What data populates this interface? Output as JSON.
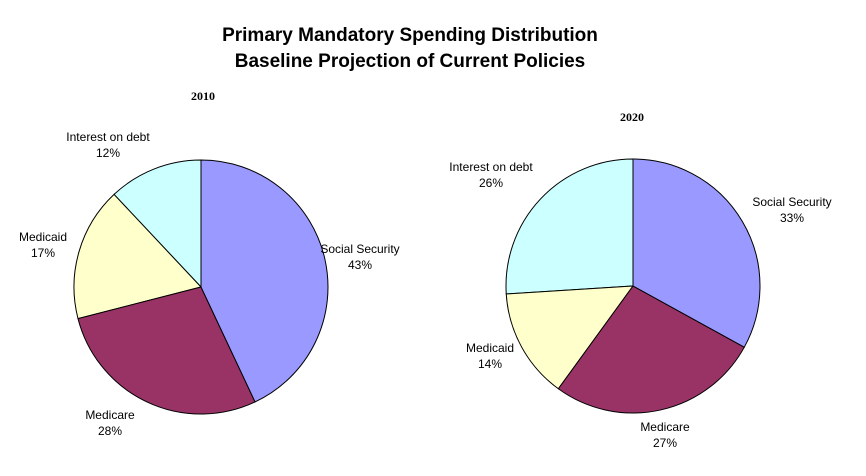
{
  "chart_title": {
    "line1": "Primary Mandatory Spending Distribution",
    "line2": "Baseline Projection of Current Policies"
  },
  "colors": {
    "Social Security": "#9999ff",
    "Medicare": "#993366",
    "Medicaid": "#ffffcc",
    "Interest on debt": "#ccffff",
    "outline": "#000000",
    "background": "#ffffff"
  },
  "chart_data": [
    {
      "type": "pie",
      "title": "2010",
      "categories": [
        "Social Security",
        "Medicare",
        "Medicaid",
        "Interest on debt"
      ],
      "values": [
        43,
        28,
        17,
        12
      ],
      "value_labels": [
        "43%",
        "28%",
        "17%",
        "12%"
      ],
      "unit": "%",
      "start_angle": "12 o'clock",
      "direction": "clockwise",
      "legend": "none"
    },
    {
      "type": "pie",
      "title": "2020",
      "categories": [
        "Social Security",
        "Medicare",
        "Medicaid",
        "Interest on debt"
      ],
      "values": [
        33,
        27,
        14,
        26
      ],
      "value_labels": [
        "33%",
        "27%",
        "14%",
        "26%"
      ],
      "unit": "%",
      "start_angle": "12 o'clock",
      "direction": "clockwise",
      "legend": "none"
    }
  ]
}
